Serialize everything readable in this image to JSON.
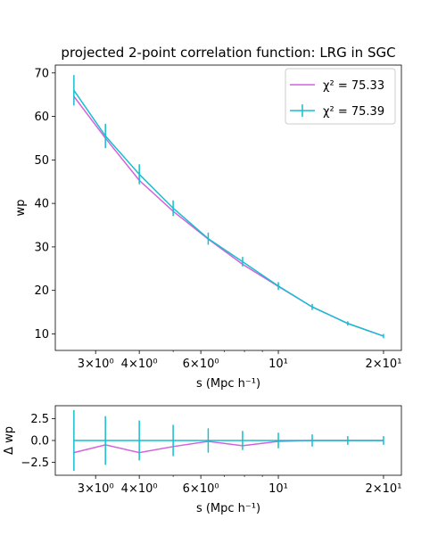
{
  "figure": {
    "title": "projected 2-point correlation function: LRG in SGC"
  },
  "chart_data": [
    {
      "type": "line",
      "panel": "main",
      "title": "projected 2-point correlation function: LRG in SGC",
      "xlabel": "s (Mpc h⁻¹)",
      "ylabel": "wp",
      "xscale": "log",
      "xlim": [
        2.3,
        22.5
      ],
      "ylim": [
        6.2,
        71.8
      ],
      "xticks": [
        {
          "value": 3,
          "label": "3×10⁰"
        },
        {
          "value": 4,
          "label": "4×10⁰"
        },
        {
          "value": 6,
          "label": "6×10⁰"
        },
        {
          "value": 10,
          "label": "10¹"
        },
        {
          "value": 20,
          "label": "2×10¹"
        }
      ],
      "yticks": [
        10,
        20,
        30,
        40,
        50,
        60,
        70
      ],
      "legend": "top-right",
      "series": [
        {
          "name": "χ² = 75.33",
          "color": "#d162de",
          "style": "line",
          "x": [
            2.6,
            3.2,
            4.0,
            5.0,
            6.3,
            7.9,
            10.0,
            12.5,
            15.8,
            20.0
          ],
          "y": [
            64.6,
            55.0,
            45.3,
            38.2,
            31.8,
            26.0,
            20.9,
            16.2,
            12.4,
            9.5
          ]
        },
        {
          "name": "χ² = 75.39",
          "color": "#17becf",
          "style": "errorbar",
          "x": [
            2.6,
            3.2,
            4.0,
            5.0,
            6.3,
            7.9,
            10.0,
            12.5,
            15.8,
            20.0
          ],
          "y": [
            66.0,
            55.5,
            46.7,
            38.9,
            31.9,
            26.6,
            21.0,
            16.2,
            12.4,
            9.5
          ],
          "yerr": [
            3.5,
            2.8,
            2.3,
            1.8,
            1.4,
            1.1,
            0.9,
            0.7,
            0.5,
            0.5
          ]
        }
      ]
    },
    {
      "type": "line",
      "panel": "residual",
      "title": "",
      "xlabel": "s (Mpc h⁻¹)",
      "ylabel": "Δ wp",
      "xscale": "log",
      "xlim": [
        2.3,
        22.5
      ],
      "ylim": [
        -4.0,
        4.0
      ],
      "xticks": [
        {
          "value": 3,
          "label": "3×10⁰"
        },
        {
          "value": 4,
          "label": "4×10⁰"
        },
        {
          "value": 6,
          "label": "6×10⁰"
        },
        {
          "value": 10,
          "label": "10¹"
        },
        {
          "value": 20,
          "label": "2×10¹"
        }
      ],
      "yticks": [
        {
          "value": -2.5,
          "label": "−2.5"
        },
        {
          "value": 0.0,
          "label": "0.0"
        },
        {
          "value": 2.5,
          "label": "2.5"
        }
      ],
      "series": [
        {
          "color": "#d162de",
          "style": "line",
          "x": [
            2.6,
            3.2,
            4.0,
            5.0,
            6.3,
            7.9,
            10.0,
            12.5,
            15.8,
            20.0
          ],
          "y": [
            -1.4,
            -0.5,
            -1.4,
            -0.7,
            -0.1,
            -0.6,
            -0.1,
            0.0,
            0.0,
            0.0
          ]
        },
        {
          "color": "#17becf",
          "style": "errorbar",
          "x": [
            2.6,
            3.2,
            4.0,
            5.0,
            6.3,
            7.9,
            10.0,
            12.5,
            15.8,
            20.0
          ],
          "y": [
            0,
            0,
            0,
            0,
            0,
            0,
            0,
            0,
            0,
            0
          ],
          "yerr": [
            3.5,
            2.8,
            2.3,
            1.8,
            1.4,
            1.1,
            0.9,
            0.7,
            0.5,
            0.5
          ]
        }
      ]
    }
  ]
}
